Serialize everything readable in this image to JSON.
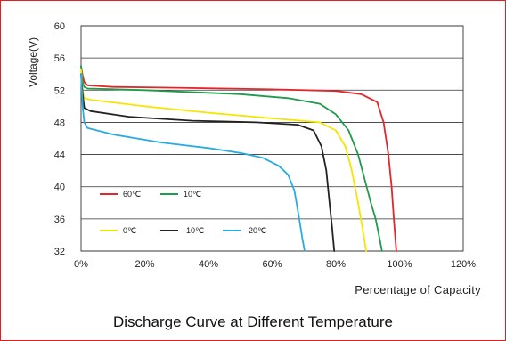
{
  "caption": "Discharge Curve at Different Temperature",
  "chart_data": {
    "type": "line",
    "title": "Discharge Curve at Different Temperature",
    "xlabel": "Percentage of Capacity",
    "ylabel": "Voltage(V)",
    "xlim": [
      0,
      120
    ],
    "ylim": [
      32,
      60
    ],
    "x_ticks": [
      "0%",
      "20%",
      "40%",
      "60%",
      "80%",
      "100%",
      "120%"
    ],
    "x_tick_values": [
      0,
      20,
      40,
      60,
      80,
      100,
      120
    ],
    "y_ticks": [
      "32",
      "36",
      "40",
      "44",
      "48",
      "52",
      "56",
      "60"
    ],
    "y_tick_values": [
      32,
      36,
      40,
      44,
      48,
      52,
      56,
      60
    ],
    "grid": "horizontal",
    "legend_position": "lower-left",
    "series": [
      {
        "name": "60℃",
        "color": "#e3262b",
        "points": [
          [
            0,
            55
          ],
          [
            0.5,
            53.8
          ],
          [
            1,
            53
          ],
          [
            2,
            52.6
          ],
          [
            10,
            52.4
          ],
          [
            30,
            52.3
          ],
          [
            60,
            52.1
          ],
          [
            80,
            51.9
          ],
          [
            88,
            51.5
          ],
          [
            93,
            50.5
          ],
          [
            95,
            48
          ],
          [
            96.5,
            44
          ],
          [
            97.5,
            40
          ],
          [
            98.2,
            36
          ],
          [
            99,
            32
          ]
        ]
      },
      {
        "name": "10℃",
        "color": "#1e9b4c",
        "points": [
          [
            0,
            55
          ],
          [
            0.5,
            53
          ],
          [
            1,
            52.4
          ],
          [
            2,
            52.2
          ],
          [
            20,
            52
          ],
          [
            50,
            51.5
          ],
          [
            65,
            51
          ],
          [
            75,
            50.3
          ],
          [
            80,
            49
          ],
          [
            84,
            47
          ],
          [
            87,
            44
          ],
          [
            89,
            41
          ],
          [
            91,
            38
          ],
          [
            92.5,
            36
          ],
          [
            93.5,
            34
          ],
          [
            94.5,
            32
          ]
        ]
      },
      {
        "name": "0℃",
        "color": "#f6e500",
        "points": [
          [
            0,
            54.5
          ],
          [
            0.5,
            52
          ],
          [
            1,
            51
          ],
          [
            3,
            50.8
          ],
          [
            20,
            50
          ],
          [
            40,
            49.2
          ],
          [
            60,
            48.5
          ],
          [
            75,
            48
          ],
          [
            80,
            47
          ],
          [
            83,
            45
          ],
          [
            85,
            42
          ],
          [
            87,
            38
          ],
          [
            88.3,
            35
          ],
          [
            89.5,
            32
          ]
        ]
      },
      {
        "name": "-10℃",
        "color": "#222222",
        "points": [
          [
            0,
            54
          ],
          [
            0.5,
            51.5
          ],
          [
            1,
            49.8
          ],
          [
            3,
            49.4
          ],
          [
            15,
            48.7
          ],
          [
            35,
            48.2
          ],
          [
            55,
            48
          ],
          [
            68,
            47.7
          ],
          [
            73,
            47
          ],
          [
            75.5,
            45
          ],
          [
            77,
            42
          ],
          [
            78,
            38
          ],
          [
            78.8,
            35
          ],
          [
            79.5,
            32
          ]
        ]
      },
      {
        "name": "-20℃",
        "color": "#29abe2",
        "points": [
          [
            0,
            54
          ],
          [
            0.5,
            50
          ],
          [
            1,
            48
          ],
          [
            2,
            47.3
          ],
          [
            10,
            46.5
          ],
          [
            25,
            45.5
          ],
          [
            40,
            44.8
          ],
          [
            50,
            44.2
          ],
          [
            57,
            43.6
          ],
          [
            62,
            42.6
          ],
          [
            65,
            41.5
          ],
          [
            67,
            39.5
          ],
          [
            68.5,
            36
          ],
          [
            69.5,
            33.5
          ],
          [
            70.2,
            32
          ]
        ]
      }
    ]
  }
}
